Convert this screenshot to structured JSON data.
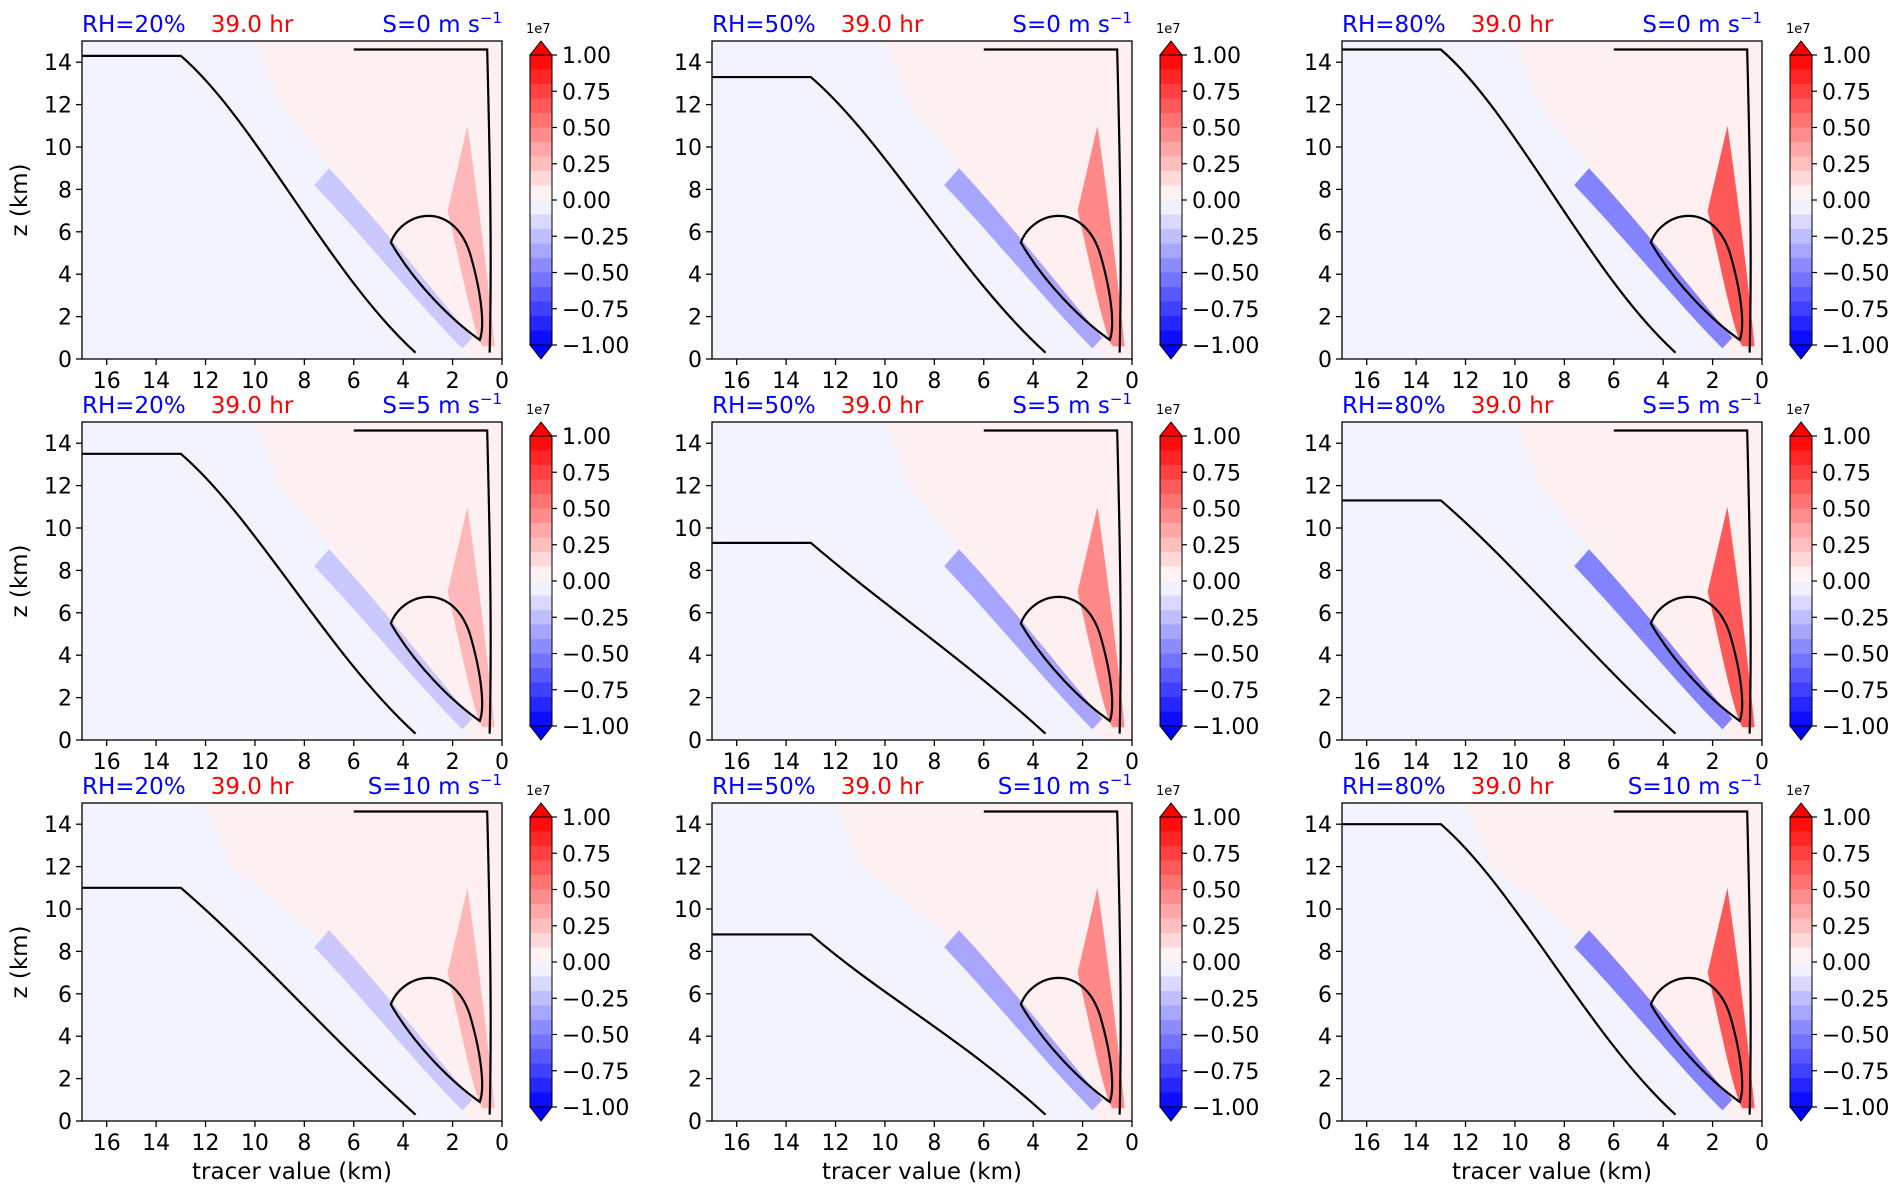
{
  "figure": {
    "time_label": "39.0 hr",
    "xlabel": "tracer value (km)",
    "ylabel": "z (km)",
    "colorbar_exponent": "1e7",
    "colors": {
      "title_blue": "#0000ff",
      "title_red": "#ff0000",
      "contour": "#000000"
    }
  },
  "chart_data": [
    {
      "type": "contourf",
      "row": 0,
      "col": 0,
      "rh_label": "RH=20%",
      "time_label": "39.0 hr",
      "shear_label": "S=0 m s",
      "shear_sup": "−1",
      "xlim": [
        17,
        0
      ],
      "ylim": [
        0,
        15
      ],
      "xticks": [
        16,
        14,
        12,
        10,
        8,
        6,
        4,
        2,
        0
      ],
      "yticks": [
        0,
        2,
        4,
        6,
        8,
        10,
        12,
        14
      ],
      "ylabel": "z (km)",
      "xlabel": "",
      "colorbar": {
        "ticks": [
          "1.00",
          "0.75",
          "0.50",
          "0.25",
          "0.00",
          "−0.25",
          "−0.50",
          "−0.75",
          "−1.00"
        ],
        "exponent": "1e7",
        "range": [
          -1,
          1
        ]
      }
    },
    {
      "type": "contourf",
      "row": 0,
      "col": 1,
      "rh_label": "RH=50%",
      "time_label": "39.0 hr",
      "shear_label": "S=0 m s",
      "shear_sup": "−1",
      "xlim": [
        17,
        0
      ],
      "ylim": [
        0,
        15
      ],
      "xticks": [
        16,
        14,
        12,
        10,
        8,
        6,
        4,
        2,
        0
      ],
      "yticks": [
        0,
        2,
        4,
        6,
        8,
        10,
        12,
        14
      ],
      "ylabel": "",
      "xlabel": "",
      "colorbar": {
        "ticks": [
          "1.00",
          "0.75",
          "0.50",
          "0.25",
          "0.00",
          "−0.25",
          "−0.50",
          "−0.75",
          "−1.00"
        ],
        "exponent": "1e7",
        "range": [
          -1,
          1
        ]
      }
    },
    {
      "type": "contourf",
      "row": 0,
      "col": 2,
      "rh_label": "RH=80%",
      "time_label": "39.0 hr",
      "shear_label": "S=0 m s",
      "shear_sup": "−1",
      "xlim": [
        17,
        0
      ],
      "ylim": [
        0,
        15
      ],
      "xticks": [
        16,
        14,
        12,
        10,
        8,
        6,
        4,
        2,
        0
      ],
      "yticks": [
        0,
        2,
        4,
        6,
        8,
        10,
        12,
        14
      ],
      "ylabel": "",
      "xlabel": "",
      "colorbar": {
        "ticks": [
          "1.00",
          "0.75",
          "0.50",
          "0.25",
          "0.00",
          "−0.25",
          "−0.50",
          "−0.75",
          "−1.00"
        ],
        "exponent": "1e7",
        "range": [
          -1,
          1
        ]
      }
    },
    {
      "type": "contourf",
      "row": 1,
      "col": 0,
      "rh_label": "RH=20%",
      "time_label": "39.0 hr",
      "shear_label": "S=5 m s",
      "shear_sup": "−1",
      "xlim": [
        17,
        0
      ],
      "ylim": [
        0,
        15
      ],
      "xticks": [
        16,
        14,
        12,
        10,
        8,
        6,
        4,
        2,
        0
      ],
      "yticks": [
        0,
        2,
        4,
        6,
        8,
        10,
        12,
        14
      ],
      "ylabel": "z (km)",
      "xlabel": "",
      "colorbar": {
        "ticks": [
          "1.00",
          "0.75",
          "0.50",
          "0.25",
          "0.00",
          "−0.25",
          "−0.50",
          "−0.75",
          "−1.00"
        ],
        "exponent": "1e7",
        "range": [
          -1,
          1
        ]
      }
    },
    {
      "type": "contourf",
      "row": 1,
      "col": 1,
      "rh_label": "RH=50%",
      "time_label": "39.0 hr",
      "shear_label": "S=5 m s",
      "shear_sup": "−1",
      "xlim": [
        17,
        0
      ],
      "ylim": [
        0,
        15
      ],
      "xticks": [
        16,
        14,
        12,
        10,
        8,
        6,
        4,
        2,
        0
      ],
      "yticks": [
        0,
        2,
        4,
        6,
        8,
        10,
        12,
        14
      ],
      "ylabel": "",
      "xlabel": "",
      "colorbar": {
        "ticks": [
          "1.00",
          "0.75",
          "0.50",
          "0.25",
          "0.00",
          "−0.25",
          "−0.50",
          "−0.75",
          "−1.00"
        ],
        "exponent": "1e7",
        "range": [
          -1,
          1
        ]
      }
    },
    {
      "type": "contourf",
      "row": 1,
      "col": 2,
      "rh_label": "RH=80%",
      "time_label": "39.0 hr",
      "shear_label": "S=5 m s",
      "shear_sup": "−1",
      "xlim": [
        17,
        0
      ],
      "ylim": [
        0,
        15
      ],
      "xticks": [
        16,
        14,
        12,
        10,
        8,
        6,
        4,
        2,
        0
      ],
      "yticks": [
        0,
        2,
        4,
        6,
        8,
        10,
        12,
        14
      ],
      "ylabel": "",
      "xlabel": "",
      "colorbar": {
        "ticks": [
          "1.00",
          "0.75",
          "0.50",
          "0.25",
          "0.00",
          "−0.25",
          "−0.50",
          "−0.75",
          "−1.00"
        ],
        "exponent": "1e7",
        "range": [
          -1,
          1
        ]
      }
    },
    {
      "type": "contourf",
      "row": 2,
      "col": 0,
      "rh_label": "RH=20%",
      "time_label": "39.0 hr",
      "shear_label": "S=10 m s",
      "shear_sup": "−1",
      "xlim": [
        17,
        0
      ],
      "ylim": [
        0,
        15
      ],
      "xticks": [
        16,
        14,
        12,
        10,
        8,
        6,
        4,
        2,
        0
      ],
      "yticks": [
        0,
        2,
        4,
        6,
        8,
        10,
        12,
        14
      ],
      "ylabel": "z (km)",
      "xlabel": "tracer value (km)",
      "colorbar": {
        "ticks": [
          "1.00",
          "0.75",
          "0.50",
          "0.25",
          "0.00",
          "−0.25",
          "−0.50",
          "−0.75",
          "−1.00"
        ],
        "exponent": "1e7",
        "range": [
          -1,
          1
        ]
      }
    },
    {
      "type": "contourf",
      "row": 2,
      "col": 1,
      "rh_label": "RH=50%",
      "time_label": "39.0 hr",
      "shear_label": "S=10 m s",
      "shear_sup": "−1",
      "xlim": [
        17,
        0
      ],
      "ylim": [
        0,
        15
      ],
      "xticks": [
        16,
        14,
        12,
        10,
        8,
        6,
        4,
        2,
        0
      ],
      "yticks": [
        0,
        2,
        4,
        6,
        8,
        10,
        12,
        14
      ],
      "ylabel": "",
      "xlabel": "tracer value (km)",
      "colorbar": {
        "ticks": [
          "1.00",
          "0.75",
          "0.50",
          "0.25",
          "0.00",
          "−0.25",
          "−0.50",
          "−0.75",
          "−1.00"
        ],
        "exponent": "1e7",
        "range": [
          -1,
          1
        ]
      }
    },
    {
      "type": "contourf",
      "row": 2,
      "col": 2,
      "rh_label": "RH=80%",
      "time_label": "39.0 hr",
      "shear_label": "S=10 m s",
      "shear_sup": "−1",
      "xlim": [
        17,
        0
      ],
      "ylim": [
        0,
        15
      ],
      "xticks": [
        16,
        14,
        12,
        10,
        8,
        6,
        4,
        2,
        0
      ],
      "yticks": [
        0,
        2,
        4,
        6,
        8,
        10,
        12,
        14
      ],
      "ylabel": "",
      "xlabel": "tracer value (km)",
      "colorbar": {
        "ticks": [
          "1.00",
          "0.75",
          "0.50",
          "0.25",
          "0.00",
          "−0.25",
          "−0.50",
          "−0.75",
          "−1.00"
        ],
        "exponent": "1e7",
        "range": [
          -1,
          1
        ]
      }
    }
  ]
}
